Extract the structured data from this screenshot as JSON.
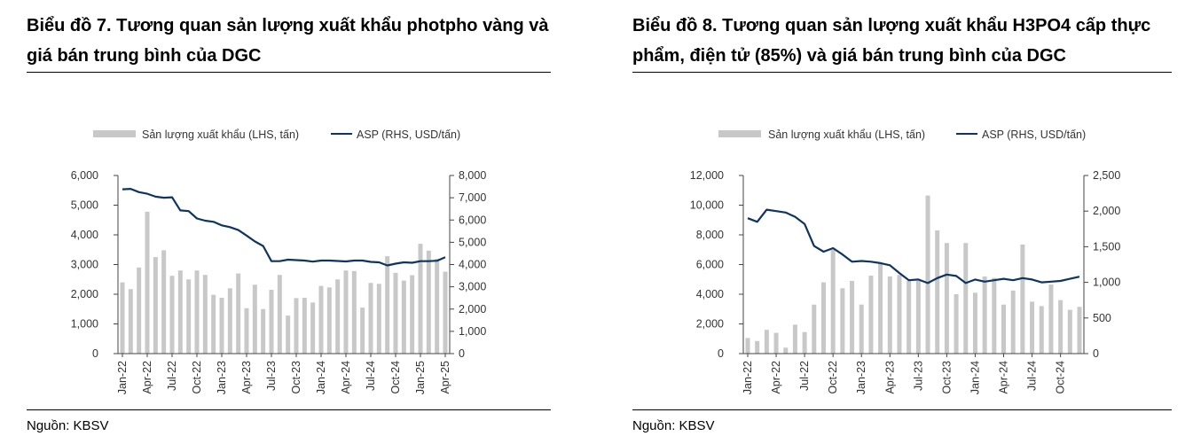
{
  "charts_text": [
    {
      "title": "Biểu đồ 7. Tương quan sản lượng xuất khẩu photpho vàng và giá bán trung bình của DGC",
      "source": "Nguồn: KBSV"
    },
    {
      "title": "Biểu đồ 8. Tương quan sản lượng xuất khẩu H3PO4 cấp thực phẩm, điện tử (85%) và giá bán trung bình của DGC",
      "source": "Nguồn: KBSV"
    }
  ],
  "chart_data": [
    {
      "type": "bar+line",
      "title": "Biểu đồ 7. Tương quan sản lượng xuất khẩu photpho vàng và giá bán trung bình của DGC",
      "legend": [
        "Sản lượng xuất khẩu (LHS, tấn)",
        "ASP (RHS, USD/tấn)"
      ],
      "legend_position": "top",
      "colors": {
        "bar": "#c8c8c8",
        "line": "#0e3461"
      },
      "x": [
        "Jan-22",
        "Feb-22",
        "Mar-22",
        "Apr-22",
        "May-22",
        "Jun-22",
        "Jul-22",
        "Aug-22",
        "Sep-22",
        "Oct-22",
        "Nov-22",
        "Dec-22",
        "Jan-23",
        "Feb-23",
        "Mar-23",
        "Apr-23",
        "May-23",
        "Jun-23",
        "Jul-23",
        "Aug-23",
        "Sep-23",
        "Oct-23",
        "Nov-23",
        "Dec-23",
        "Jan-24",
        "Feb-24",
        "Mar-24",
        "Apr-24",
        "May-24",
        "Jun-24",
        "Jul-24",
        "Aug-24",
        "Sep-24",
        "Oct-24",
        "Nov-24",
        "Dec-24",
        "Jan-25",
        "Feb-25",
        "Mar-25",
        "Apr-25"
      ],
      "xtick_every": 3,
      "bars": [
        2400,
        2170,
        2900,
        4780,
        3250,
        3480,
        2620,
        2800,
        2500,
        2800,
        2650,
        1980,
        1880,
        2200,
        2700,
        1530,
        2320,
        1500,
        2150,
        2650,
        1280,
        1870,
        1880,
        1720,
        2280,
        2230,
        2500,
        2800,
        2780,
        1550,
        2380,
        2350,
        3280,
        2720,
        2460,
        2640,
        3700,
        3470,
        3190,
        2760
      ],
      "line": [
        7380,
        7400,
        7250,
        7180,
        7050,
        7000,
        7020,
        6430,
        6400,
        6070,
        5970,
        5920,
        5760,
        5680,
        5550,
        5300,
        5040,
        4830,
        4150,
        4150,
        4220,
        4200,
        4180,
        4130,
        4180,
        4180,
        4160,
        4140,
        4180,
        4180,
        4120,
        4100,
        3960,
        4040,
        4100,
        4080,
        4150,
        4150,
        4170,
        4330
      ],
      "ylim_left": [
        0,
        6000
      ],
      "yticks_left": [
        "0",
        "1,000",
        "2,000",
        "3,000",
        "4,000",
        "5,000",
        "6,000"
      ],
      "ylim_right": [
        0,
        8000
      ],
      "yticks_right": [
        "0",
        "1,000",
        "2,000",
        "3,000",
        "4,000",
        "5,000",
        "6,000",
        "7,000",
        "8,000"
      ]
    },
    {
      "type": "bar+line",
      "title": "Biểu đồ 8. Tương quan sản lượng xuất khẩu H3PO4 cấp thực phẩm, điện tử (85%) và giá bán trung bình của DGC",
      "legend": [
        "Sản lượng xuất khẩu (LHS, tấn)",
        "ASP (RHS, USD/tấn)"
      ],
      "legend_position": "top",
      "colors": {
        "bar": "#c8c8c8",
        "line": "#0e3461"
      },
      "x": [
        "Jan-22",
        "Feb-22",
        "Mar-22",
        "Apr-22",
        "May-22",
        "Jun-22",
        "Jul-22",
        "Aug-22",
        "Sep-22",
        "Oct-22",
        "Nov-22",
        "Dec-22",
        "Jan-23",
        "Feb-23",
        "Mar-23",
        "Apr-23",
        "May-23",
        "Jun-23",
        "Jul-23",
        "Aug-23",
        "Sep-23",
        "Oct-23",
        "Nov-23",
        "Dec-23",
        "Jan-24",
        "Feb-24",
        "Mar-24",
        "Apr-24",
        "May-24",
        "Jun-24",
        "Jul-24",
        "Aug-24",
        "Sep-24",
        "Oct-24",
        "Nov-24",
        "Dec-24"
      ],
      "xtick_every": 3,
      "bars": [
        1050,
        850,
        1600,
        1400,
        400,
        1950,
        1450,
        3300,
        4800,
        7000,
        4400,
        4900,
        3300,
        5250,
        6100,
        5200,
        5300,
        4900,
        4900,
        10650,
        8300,
        7450,
        4000,
        7450,
        4100,
        5200,
        5100,
        3300,
        4250,
        7350,
        3500,
        3200,
        4650,
        3600,
        2950,
        3150
      ],
      "line": [
        1900,
        1850,
        2020,
        2000,
        1980,
        1920,
        1820,
        1510,
        1430,
        1480,
        1390,
        1290,
        1300,
        1290,
        1270,
        1240,
        1130,
        1030,
        1040,
        990,
        1060,
        1110,
        1090,
        990,
        1040,
        1010,
        1030,
        1050,
        1030,
        1060,
        1040,
        1000,
        1010,
        1020,
        1050,
        1080
      ],
      "ylim_left": [
        0,
        12000
      ],
      "yticks_left": [
        "0",
        "2,000",
        "4,000",
        "6,000",
        "8,000",
        "10,000",
        "12,000"
      ],
      "ylim_right": [
        0,
        2500
      ],
      "yticks_right": [
        "0",
        "500",
        "1,000",
        "1,500",
        "2,000",
        "2,500"
      ]
    }
  ]
}
